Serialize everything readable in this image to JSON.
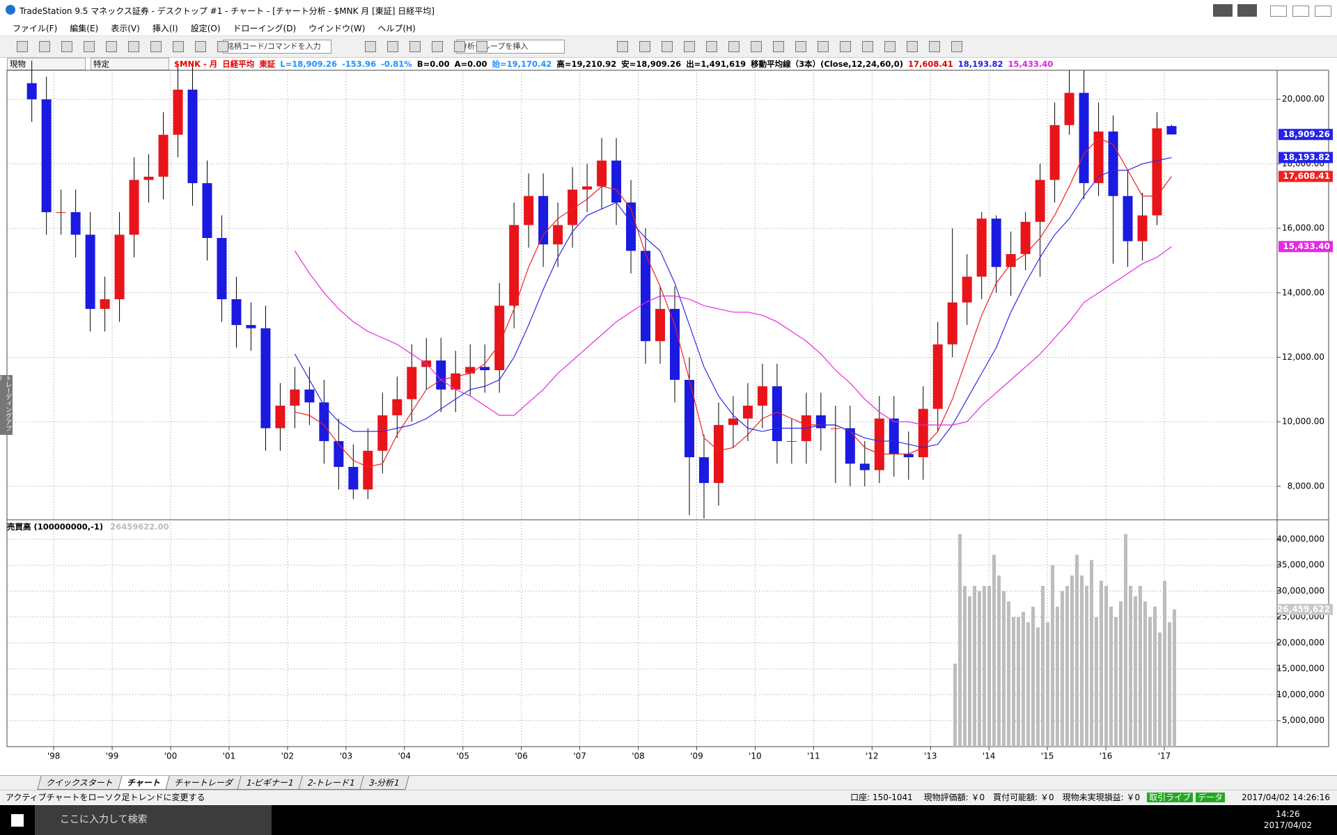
{
  "window": {
    "title": "TradeStation 9.5 マネックス証券 - デスクトップ #1 - チャート - [チャート分析 - $MNK 月 [東証] 日経平均]"
  },
  "menu": [
    "ファイル(F)",
    "編集(E)",
    "表示(V)",
    "挿入(I)",
    "設定(O)",
    "ドローイング(D)",
    "ウインドウ(W)",
    "ヘルプ(H)"
  ],
  "toolbar": {
    "symbol_input": "銘柄コード/コマンドを入力",
    "group_input": "分析グループを挿入"
  },
  "selectors": [
    "現物",
    "特定"
  ],
  "side_tab": "トレーディングアプリ",
  "chart_data": [
    {
      "type": "candlestick",
      "info": [
        {
          "text": "$MNK - 月",
          "color": "#e00000"
        },
        {
          "text": "日経平均",
          "color": "#e00000"
        },
        {
          "text": "東証",
          "color": "#e00000"
        },
        {
          "text": "L=18,909.26",
          "color": "#1e90ff"
        },
        {
          "text": "-153.96",
          "color": "#1e90ff"
        },
        {
          "text": "-0.81%",
          "color": "#1e90ff"
        },
        {
          "text": "B=0.00",
          "color": "#000000"
        },
        {
          "text": "A=0.00",
          "color": "#000000"
        },
        {
          "text": "始=19,170.42",
          "color": "#1e90ff"
        },
        {
          "text": "高=19,210.92",
          "color": "#000000"
        },
        {
          "text": "安=18,909.26",
          "color": "#000000"
        },
        {
          "text": "出=1,491,619",
          "color": "#000000"
        },
        {
          "text": "移動平均線（3本）(Close,12,24,60,0)",
          "color": "#000000"
        },
        {
          "text": "17,608.41",
          "color": "#e00000"
        },
        {
          "text": "18,193.82",
          "color": "#2020e0"
        },
        {
          "text": "15,433.40",
          "color": "#e020e0"
        }
      ],
      "up_color": "#e8141a",
      "down_color": "#1a1ae0",
      "x": [
        1997.625,
        1997.875,
        1998.125,
        1998.375,
        1998.625,
        1998.875,
        1999.125,
        1999.375,
        1999.625,
        1999.875,
        2000.125,
        2000.375,
        2000.625,
        2000.875,
        2001.125,
        2001.375,
        2001.625,
        2001.875,
        2002.125,
        2002.375,
        2002.625,
        2002.875,
        2003.125,
        2003.375,
        2003.625,
        2003.875,
        2004.125,
        2004.375,
        2004.625,
        2004.875,
        2005.125,
        2005.375,
        2005.625,
        2005.875,
        2006.125,
        2006.375,
        2006.625,
        2006.875,
        2007.125,
        2007.375,
        2007.625,
        2007.875,
        2008.125,
        2008.375,
        2008.625,
        2008.875,
        2009.125,
        2009.375,
        2009.625,
        2009.875,
        2010.125,
        2010.375,
        2010.625,
        2010.875,
        2011.125,
        2011.375,
        2011.625,
        2011.875,
        2012.125,
        2012.375,
        2012.625,
        2012.875,
        2013.125,
        2013.375,
        2013.625,
        2013.875,
        2014.125,
        2014.375,
        2014.625,
        2014.875,
        2015.125,
        2015.375,
        2015.625,
        2015.875,
        2016.125,
        2016.375,
        2016.625,
        2016.875,
        2017.125
      ],
      "open": [
        20500,
        20000,
        16500,
        16500,
        15800,
        13500,
        13800,
        15800,
        17500,
        17600,
        18900,
        20300,
        17400,
        15700,
        13800,
        13000,
        12900,
        9800,
        10500,
        11000,
        10600,
        9400,
        8600,
        7900,
        9100,
        10200,
        10700,
        11700,
        11900,
        11000,
        11500,
        11700,
        11600,
        13600,
        16100,
        17000,
        15500,
        16100,
        17200,
        17300,
        18100,
        16800,
        15300,
        12500,
        13500,
        11300,
        8900,
        8100,
        9900,
        10100,
        10500,
        11100,
        9400,
        9400,
        10200,
        9800,
        9800,
        8700,
        8500,
        10100,
        9000,
        8900,
        10400,
        12400,
        13700,
        14500,
        16300,
        14800,
        15200,
        16200,
        17500,
        19200,
        20200,
        17400,
        19000,
        17000,
        15600,
        16400,
        19170.42
      ],
      "high": [
        21200,
        20700,
        17200,
        17200,
        16500,
        14500,
        16500,
        18200,
        18300,
        19600,
        21000,
        21000,
        18100,
        16400,
        14500,
        13700,
        13600,
        11200,
        11700,
        11700,
        11300,
        10100,
        9300,
        9800,
        10900,
        11400,
        12400,
        12600,
        12600,
        12200,
        12400,
        12400,
        14300,
        16800,
        17700,
        17700,
        16800,
        17900,
        18000,
        18800,
        18800,
        17500,
        16000,
        14200,
        14200,
        12000,
        9600,
        10600,
        10800,
        11200,
        11800,
        11800,
        10100,
        10900,
        10900,
        10500,
        10500,
        9400,
        10800,
        10800,
        9700,
        11100,
        13100,
        16000,
        15200,
        16500,
        16400,
        15900,
        16500,
        18000,
        19900,
        20900,
        20900,
        19900,
        19500,
        17800,
        17100,
        19600,
        19210.92
      ],
      "low": [
        19300,
        15800,
        15800,
        15100,
        12800,
        12800,
        13100,
        15100,
        16800,
        16900,
        18200,
        16700,
        15000,
        13100,
        12300,
        12200,
        9100,
        9100,
        9800,
        9900,
        8700,
        7900,
        7600,
        7600,
        8400,
        9500,
        10000,
        11000,
        10300,
        10300,
        10800,
        10900,
        10900,
        12900,
        15400,
        14800,
        14800,
        15400,
        16500,
        16600,
        16100,
        14600,
        11800,
        11800,
        10600,
        7100,
        7000,
        7400,
        9200,
        9400,
        9800,
        8700,
        8700,
        8700,
        9100,
        8100,
        8000,
        8000,
        8100,
        8300,
        8200,
        8200,
        9700,
        12000,
        13000,
        13800,
        14000,
        13900,
        14700,
        14500,
        16800,
        18900,
        16900,
        17000,
        14900,
        14800,
        15000,
        16100,
        18909.26
      ],
      "close": [
        20000,
        16500,
        16500,
        15800,
        13500,
        13800,
        15800,
        17500,
        17600,
        18900,
        20300,
        17400,
        15700,
        13800,
        13000,
        12900,
        9800,
        10500,
        11000,
        10600,
        9400,
        8600,
        7900,
        9100,
        10200,
        10700,
        11700,
        11900,
        11000,
        11500,
        11700,
        11600,
        13600,
        16100,
        17000,
        15500,
        16100,
        17200,
        17300,
        18100,
        16800,
        15300,
        12500,
        13500,
        11300,
        8900,
        8100,
        9900,
        10100,
        10500,
        11100,
        9400,
        9400,
        10200,
        9800,
        9800,
        8700,
        8500,
        10100,
        9000,
        8900,
        10400,
        12400,
        13700,
        14500,
        16300,
        14800,
        15200,
        16200,
        17500,
        19200,
        20200,
        17400,
        19000,
        17000,
        15600,
        16400,
        19100,
        18909.26
      ],
      "series": [
        {
          "color": "#f02020",
          "values": [
            null,
            null,
            null,
            null,
            null,
            null,
            null,
            null,
            null,
            null,
            null,
            null,
            null,
            null,
            null,
            null,
            null,
            null,
            10300,
            10200,
            9900,
            9300,
            8800,
            8600,
            8700,
            9600,
            10300,
            11000,
            11300,
            11400,
            11500,
            11800,
            12400,
            13500,
            14800,
            15800,
            16300,
            16600,
            16900,
            17300,
            17200,
            16600,
            15200,
            14200,
            13000,
            11300,
            9500,
            9100,
            9200,
            9600,
            10100,
            10300,
            10100,
            9900,
            9900,
            9900,
            9700,
            9200,
            9000,
            9000,
            9000,
            9200,
            9700,
            10700,
            12000,
            13300,
            14300,
            14900,
            15200,
            15700,
            16400,
            17300,
            18300,
            18800,
            18600,
            17800,
            17000,
            17000,
            17608.41
          ]
        },
        {
          "color": "#2a2ae6",
          "values": [
            null,
            null,
            null,
            null,
            null,
            null,
            null,
            null,
            null,
            null,
            null,
            null,
            null,
            null,
            null,
            null,
            null,
            null,
            12100,
            11300,
            10500,
            10000,
            9700,
            9700,
            9700,
            9800,
            9900,
            10100,
            10400,
            10700,
            11000,
            11100,
            11300,
            12000,
            13000,
            14100,
            15100,
            15900,
            16400,
            16600,
            16800,
            16200,
            15700,
            15300,
            14300,
            13000,
            11700,
            10800,
            10200,
            9800,
            9700,
            9800,
            9800,
            9800,
            9900,
            9900,
            9700,
            9500,
            9400,
            9400,
            9300,
            9200,
            9300,
            9900,
            10700,
            11500,
            12300,
            13400,
            14300,
            15100,
            15800,
            16300,
            17000,
            17600,
            17800,
            17800,
            18000,
            18100,
            18193.82
          ]
        },
        {
          "color": "#e628e6",
          "values": [
            null,
            null,
            null,
            null,
            null,
            null,
            null,
            null,
            null,
            null,
            null,
            null,
            null,
            null,
            null,
            null,
            null,
            null,
            15300,
            14600,
            14000,
            13500,
            13100,
            12800,
            12600,
            12400,
            12100,
            11800,
            11300,
            11000,
            10800,
            10500,
            10200,
            10200,
            10600,
            11000,
            11500,
            11900,
            12300,
            12700,
            13100,
            13400,
            13700,
            13900,
            13900,
            13800,
            13600,
            13500,
            13400,
            13400,
            13300,
            13100,
            12800,
            12500,
            12100,
            11600,
            11200,
            10700,
            10300,
            10000,
            10000,
            9900,
            9900,
            9900,
            10000,
            10500,
            10900,
            11300,
            11700,
            12100,
            12600,
            13100,
            13700,
            14000,
            14300,
            14600,
            14900,
            15100,
            15433.4
          ]
        }
      ],
      "badges": [
        {
          "value": 18909.26,
          "label": "18,909.26",
          "color": "#2323e8"
        },
        {
          "value": 18193.82,
          "label": "18,193.82",
          "color": "#2323e8"
        },
        {
          "value": 17608.41,
          "label": "17,608.41",
          "color": "#f02020"
        },
        {
          "value": 15433.4,
          "label": "15,433.40",
          "color": "#e628e6"
        }
      ],
      "xlim": [
        1997.2,
        2018.93
      ],
      "ylim": [
        6960,
        20900
      ],
      "xticks": [
        {
          "value": 1998,
          "label": "'98"
        },
        {
          "value": 1999,
          "label": "'99"
        },
        {
          "value": 2000,
          "label": "'00"
        },
        {
          "value": 2001,
          "label": "'01"
        },
        {
          "value": 2002,
          "label": "'02"
        },
        {
          "value": 2003,
          "label": "'03"
        },
        {
          "value": 2004,
          "label": "'04"
        },
        {
          "value": 2005,
          "label": "'05"
        },
        {
          "value": 2006,
          "label": "'06"
        },
        {
          "value": 2007,
          "label": "'07"
        },
        {
          "value": 2008,
          "label": "'08"
        },
        {
          "value": 2009,
          "label": "'09"
        },
        {
          "value": 2010,
          "label": "'10"
        },
        {
          "value": 2011,
          "label": "'11"
        },
        {
          "value": 2012,
          "label": "'12"
        },
        {
          "value": 2013,
          "label": "'13"
        },
        {
          "value": 2014,
          "label": "'14"
        },
        {
          "value": 2015,
          "label": "'15"
        },
        {
          "value": 2016,
          "label": "'16"
        },
        {
          "value": 2017,
          "label": "'17"
        }
      ],
      "yticks": [
        {
          "value": 8000,
          "label": "8,000.00"
        },
        {
          "value": 10000,
          "label": "10,000.00"
        },
        {
          "value": 12000,
          "label": "12,000.00"
        },
        {
          "value": 14000,
          "label": "14,000.00"
        },
        {
          "value": 16000,
          "label": "16,000.00"
        },
        {
          "value": 18000,
          "label": "18,000.00"
        },
        {
          "value": 20000,
          "label": "20,000.00"
        }
      ],
      "grid": true
    },
    {
      "type": "bar",
      "title": "売買高 (100000000,-1)",
      "subtitle": "26459622.00",
      "color": "#bdbdbd",
      "categories": [
        null,
        null,
        null,
        null,
        null,
        null,
        null,
        null,
        null,
        null,
        null,
        null,
        null,
        null,
        null,
        null,
        null,
        null,
        null,
        null,
        null,
        null,
        null,
        null,
        null,
        null,
        null,
        null,
        null,
        null,
        null,
        null,
        null,
        null,
        null,
        null,
        null,
        null,
        null,
        null,
        null,
        null,
        null,
        null,
        null,
        null
      ],
      "values": [
        16000000,
        41000000,
        31000000,
        29000000,
        31000000,
        30000000,
        31000000,
        31000000,
        37000000,
        33000000,
        30000000,
        28000000,
        25000000,
        25000000,
        26000000,
        24000000,
        27000000,
        23000000,
        31000000,
        24000000,
        35000000,
        27000000,
        30000000,
        31000000,
        33000000,
        37000000,
        33000000,
        31000000,
        36000000,
        25000000,
        32000000,
        31000000,
        27000000,
        25000000,
        28000000,
        41000000,
        31000000,
        29000000,
        31000000,
        28000000,
        25000000,
        27000000,
        22000000,
        32000000,
        24000000,
        26459622
      ],
      "badges": [
        {
          "value": 26459622,
          "label": "26,459,622",
          "color": "#c8c8c8"
        }
      ],
      "ylim": [
        0,
        43750000
      ],
      "yticks": [
        {
          "value": 5000000,
          "label": "5,000,000"
        },
        {
          "value": 10000000,
          "label": "10,000,000"
        },
        {
          "value": 15000000,
          "label": "15,000,000"
        },
        {
          "value": 20000000,
          "label": "20,000,000"
        },
        {
          "value": 25000000,
          "label": "25,000,000"
        },
        {
          "value": 30000000,
          "label": "30,000,000"
        },
        {
          "value": 35000000,
          "label": "35,000,000"
        },
        {
          "value": 40000000,
          "label": "40,000,000"
        }
      ],
      "grid": true
    }
  ],
  "tabs": [
    "クイックスタート",
    "チャート",
    "チャートレーダ",
    "1-ビギナー1",
    "2-トレード1",
    "3-分析1"
  ],
  "status": {
    "message": "アクティブチャートをローソク足トレンドに変更する",
    "account": "口座: 150-1041",
    "items": [
      "現物評価額: ￥0",
      "買付可能額: ￥0",
      "現物未実現損益: ￥0"
    ],
    "live": "取引ライブ",
    "data": "データ",
    "time": "2017/04/02 14:26:16"
  },
  "taskbar": {
    "search": "ここに入力して検索",
    "time": "14:26",
    "date": "2017/04/02"
  }
}
